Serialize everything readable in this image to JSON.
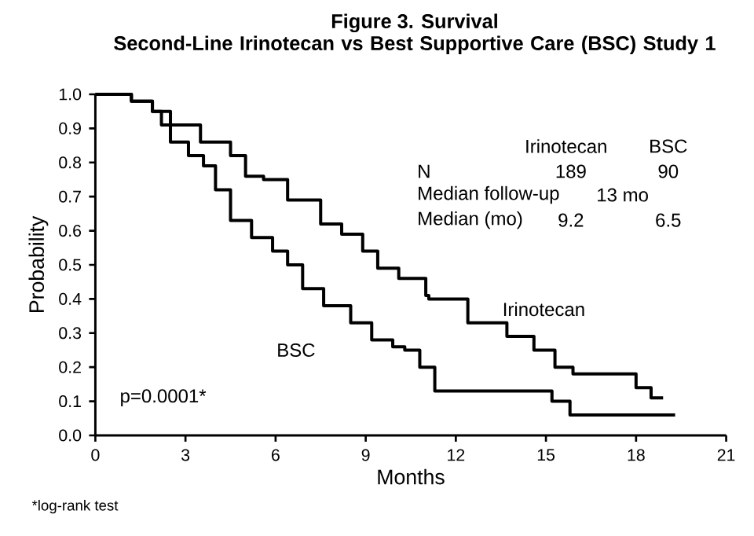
{
  "chart_data": {
    "type": "step",
    "title": "Figure 3. Survival",
    "subtitle": "Second-Line Irinotecan vs Best Supportive Care (BSC) Study 1",
    "xlabel": "Months",
    "ylabel": "Probability",
    "series": [
      {
        "name": "Irinotecan",
        "color": "#000000",
        "x": [
          0,
          1.2,
          1.9,
          2.2,
          3.5,
          4.5,
          5.0,
          5.6,
          6.4,
          7.5,
          8.2,
          8.9,
          9.4,
          10.1,
          11.0,
          11.1,
          12.4,
          13.7,
          14.6,
          15.3,
          15.9,
          18.0,
          18.5,
          18.9
        ],
        "values": [
          1,
          0.98,
          0.95,
          0.91,
          0.86,
          0.82,
          0.76,
          0.75,
          0.69,
          0.62,
          0.59,
          0.54,
          0.49,
          0.46,
          0.41,
          0.4,
          0.33,
          0.29,
          0.25,
          0.2,
          0.18,
          0.14,
          0.11,
          0.11
        ]
      },
      {
        "name": "BSC",
        "color": "#000000",
        "x": [
          0,
          1.2,
          1.9,
          2.5,
          3.1,
          3.6,
          4.0,
          4.5,
          5.2,
          5.9,
          6.4,
          6.9,
          7.6,
          8.5,
          9.2,
          9.9,
          10.3,
          10.8,
          11.3,
          15.2,
          15.8,
          19.3
        ],
        "values": [
          1,
          0.98,
          0.95,
          0.86,
          0.82,
          0.79,
          0.72,
          0.63,
          0.58,
          0.54,
          0.5,
          0.43,
          0.38,
          0.33,
          0.28,
          0.26,
          0.25,
          0.2,
          0.13,
          0.1,
          0.06,
          0.06
        ]
      }
    ],
    "xlim": [
      0,
      21
    ],
    "xticks": [
      0,
      3,
      6,
      9,
      12,
      15,
      18,
      21
    ],
    "ylim": [
      0,
      1
    ],
    "yticks": [
      {
        "value": 0,
        "label": "0.0"
      },
      0.1,
      0.2,
      0.3,
      0.4,
      0.5,
      0.6,
      0.7,
      0.8,
      0.9,
      {
        "value": 1,
        "label": "1.0"
      }
    ],
    "grid": false,
    "legend": false,
    "marker": "none",
    "line_style": "solid",
    "annotations": [
      "Irinotecan",
      "BSC",
      "N",
      "189",
      "90",
      "Median follow-up",
      "13 mo",
      "Median (mo)",
      "9.2",
      "6.5",
      "p=0.0001*",
      "*log-rank test"
    ]
  }
}
